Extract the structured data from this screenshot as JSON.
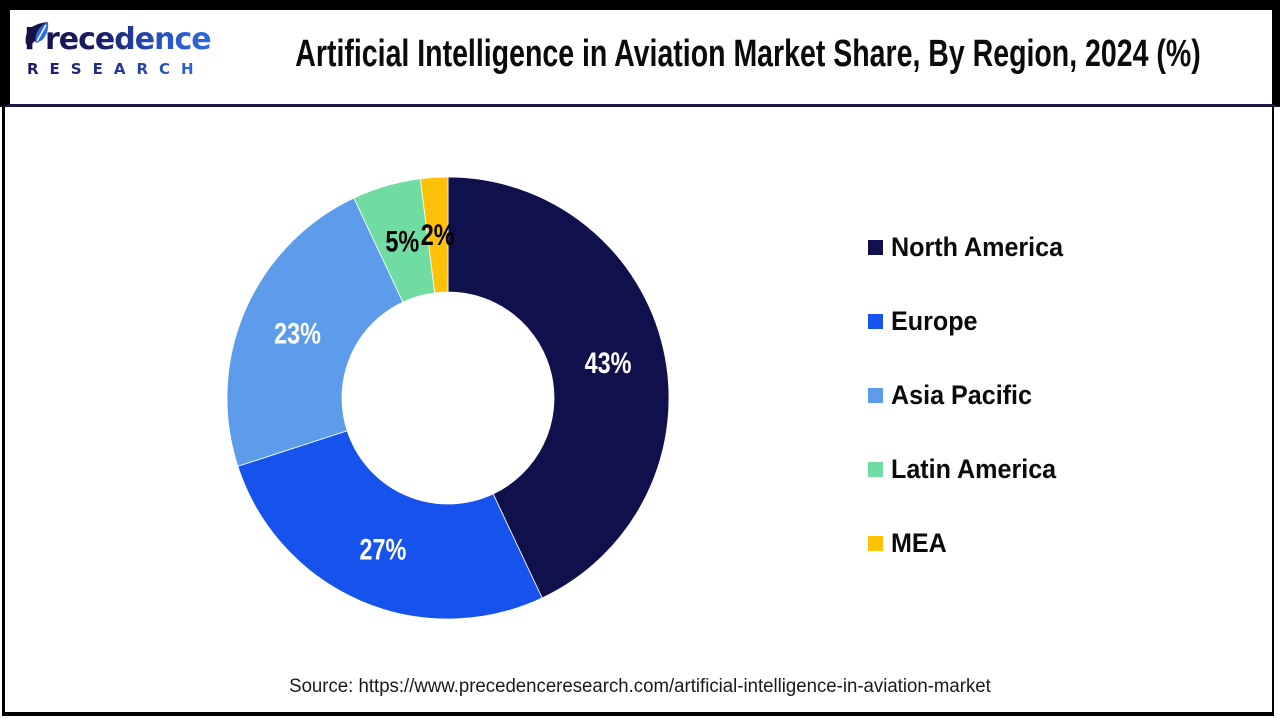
{
  "header": {
    "logo_line1": "Precedence",
    "logo_line2": "RESEARCH",
    "title": "Artificial Intelligence in Aviation Market Share, By Region, 2024 (%)"
  },
  "chart_data": {
    "type": "pie",
    "subtype": "donut",
    "title": "Artificial Intelligence in Aviation Market Share, By Region, 2024 (%)",
    "unit": "%",
    "categories": [
      "North America",
      "Europe",
      "Asia Pacific",
      "Latin America",
      "MEA"
    ],
    "values": [
      43,
      27,
      23,
      5,
      2
    ],
    "colors": [
      "#10104C",
      "#1553EC",
      "#5C9CEA",
      "#70DCA2",
      "#FFC107"
    ],
    "label_colors": [
      "#ffffff",
      "#ffffff",
      "#ffffff",
      "#000000",
      "#000000"
    ],
    "legend_position": "right",
    "start_angle_deg": 0,
    "direction": "clockwise"
  },
  "footer": {
    "source": "Source: https://www.precedenceresearch.com/artificial-intelligence-in-aviation-market"
  }
}
